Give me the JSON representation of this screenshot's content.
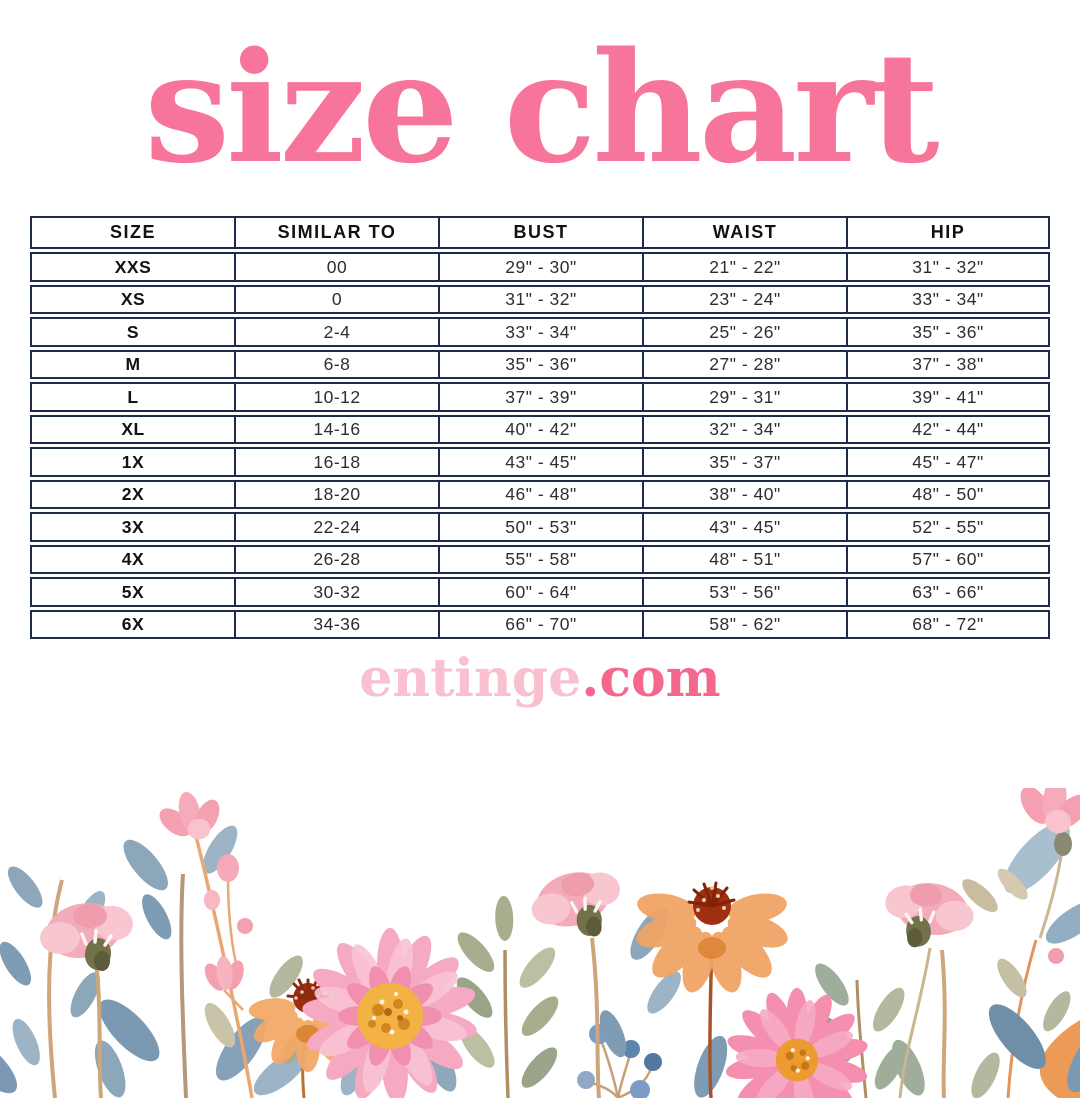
{
  "title": {
    "text": "size chart",
    "color": "#f7759b"
  },
  "table": {
    "border_color": "#1e2a4a",
    "columns": [
      "SIZE",
      "SIMILAR TO",
      "BUST",
      "WAIST",
      "HIP"
    ],
    "rows": [
      [
        "XXS",
        "00",
        "29\" - 30\"",
        "21\" - 22\"",
        "31\" - 32\""
      ],
      [
        "XS",
        "0",
        "31\" - 32\"",
        "23\" - 24\"",
        "33\" - 34\""
      ],
      [
        "S",
        "2-4",
        "33\" - 34\"",
        "25\" - 26\"",
        "35\" - 36\""
      ],
      [
        "M",
        "6-8",
        "35\" - 36\"",
        "27\" - 28\"",
        "37\" - 38\""
      ],
      [
        "L",
        "10-12",
        "37\" - 39\"",
        "29\" - 31\"",
        "39\" - 41\""
      ],
      [
        "XL",
        "14-16",
        "40\" - 42\"",
        "32\" - 34\"",
        "42\" - 44\""
      ],
      [
        "1X",
        "16-18",
        "43\" - 45\"",
        "35\" - 37\"",
        "45\" - 47\""
      ],
      [
        "2X",
        "18-20",
        "46\" - 48\"",
        "38\" - 40\"",
        "48\" - 50\""
      ],
      [
        "3X",
        "22-24",
        "50\" - 53\"",
        "43\" - 45\"",
        "52\" - 55\""
      ],
      [
        "4X",
        "26-28",
        "55\" - 58\"",
        "48\" - 51\"",
        "57\" - 60\""
      ],
      [
        "5X",
        "30-32",
        "60\" - 64\"",
        "53\" - 56\"",
        "63\" - 66\""
      ],
      [
        "6X",
        "34-36",
        "66\" - 70\"",
        "58\" - 62\"",
        "68\" - 72\""
      ]
    ]
  },
  "footer": {
    "brand_light": "entinge",
    "brand_dark": ".com",
    "light_color": "#f9c0d0",
    "dark_color": "#f5688e"
  },
  "decoration": {
    "floral_border": "watercolor-flowers",
    "palette": {
      "petal_pink": "#f6a9c2",
      "petal_pink_light": "#f9c3d2",
      "petal_pink_deep": "#f190ae",
      "peony_pink": "#f3abba",
      "orange_petal": "#f0a466",
      "flower_center_yellow": "#f2b244",
      "flower_center_red": "#9e2d10",
      "olive_bud": "#72714a",
      "leaf_blue": "#8ca6ba",
      "leaf_blue_dark": "#6f8fa8",
      "leaf_sage": "#a9ad8e",
      "stem_tan": "#cda67c",
      "berry_blue": "#7b9cc4"
    }
  }
}
